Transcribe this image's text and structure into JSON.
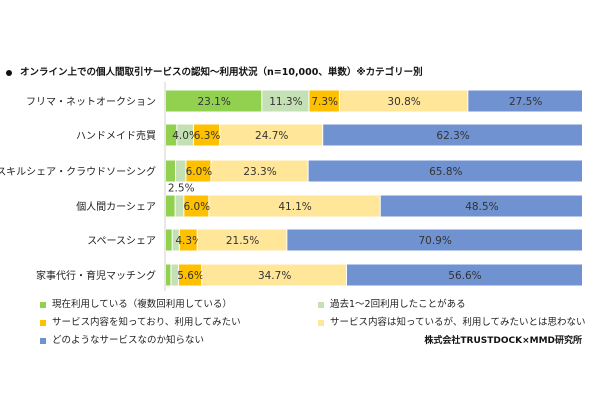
{
  "chart_data": {
    "type": "bar",
    "orientation": "horizontal",
    "stacked": true,
    "percent_stacked": true,
    "title": "オンライン上での個人間取引サービスの認知～利用状況（n=10,000、単数）※カテゴリー別",
    "categories": [
      "フリマ・ネットオークション",
      "ハンドメイド売買",
      "スキルシェア・クラウドソーシング",
      "個人間カーシェア",
      "スペースシェア",
      "家事代行・育児マッチング"
    ],
    "series": [
      {
        "name": "現在利用している（複数回利用している）",
        "color": "#92d050",
        "values": [
          23.1,
          2.7,
          2.4,
          2.3,
          1.6,
          1.3
        ],
        "labels": [
          "23.1%",
          "",
          "",
          "",
          "",
          ""
        ]
      },
      {
        "name": "過去1～2回利用したことがある",
        "color": "#c5e0b4",
        "values": [
          11.3,
          4.0,
          2.5,
          2.1,
          1.7,
          1.8
        ],
        "labels": [
          "11.3%",
          "4.0%",
          "2.5%",
          "",
          "",
          ""
        ]
      },
      {
        "name": "サービス内容を知っており、利用してみたい",
        "color": "#ffc000",
        "values": [
          7.3,
          6.3,
          6.0,
          6.0,
          4.3,
          5.6
        ],
        "labels": [
          "7.3%",
          "6.3%",
          "6.0%",
          "6.0%",
          "4.3%",
          "5.6%"
        ]
      },
      {
        "name": "サービス内容は知っているが、利用してみたいとは思わない",
        "color": "#ffe699",
        "values": [
          30.8,
          24.7,
          23.3,
          41.1,
          21.5,
          34.7
        ],
        "labels": [
          "30.8%",
          "24.7%",
          "23.3%",
          "41.1%",
          "21.5%",
          "34.7%"
        ]
      },
      {
        "name": "どのようなサービスなのか知らない",
        "color": "#7092d0",
        "values": [
          27.5,
          62.3,
          65.8,
          48.5,
          70.9,
          56.6
        ],
        "labels": [
          "27.5%",
          "62.3%",
          "65.8%",
          "48.5%",
          "70.9%",
          "56.6%"
        ]
      }
    ],
    "xlim": [
      0,
      100
    ],
    "grid": false,
    "legend_position": "bottom"
  },
  "credit": "株式会社TRUSTDOCK×MMD研究所"
}
